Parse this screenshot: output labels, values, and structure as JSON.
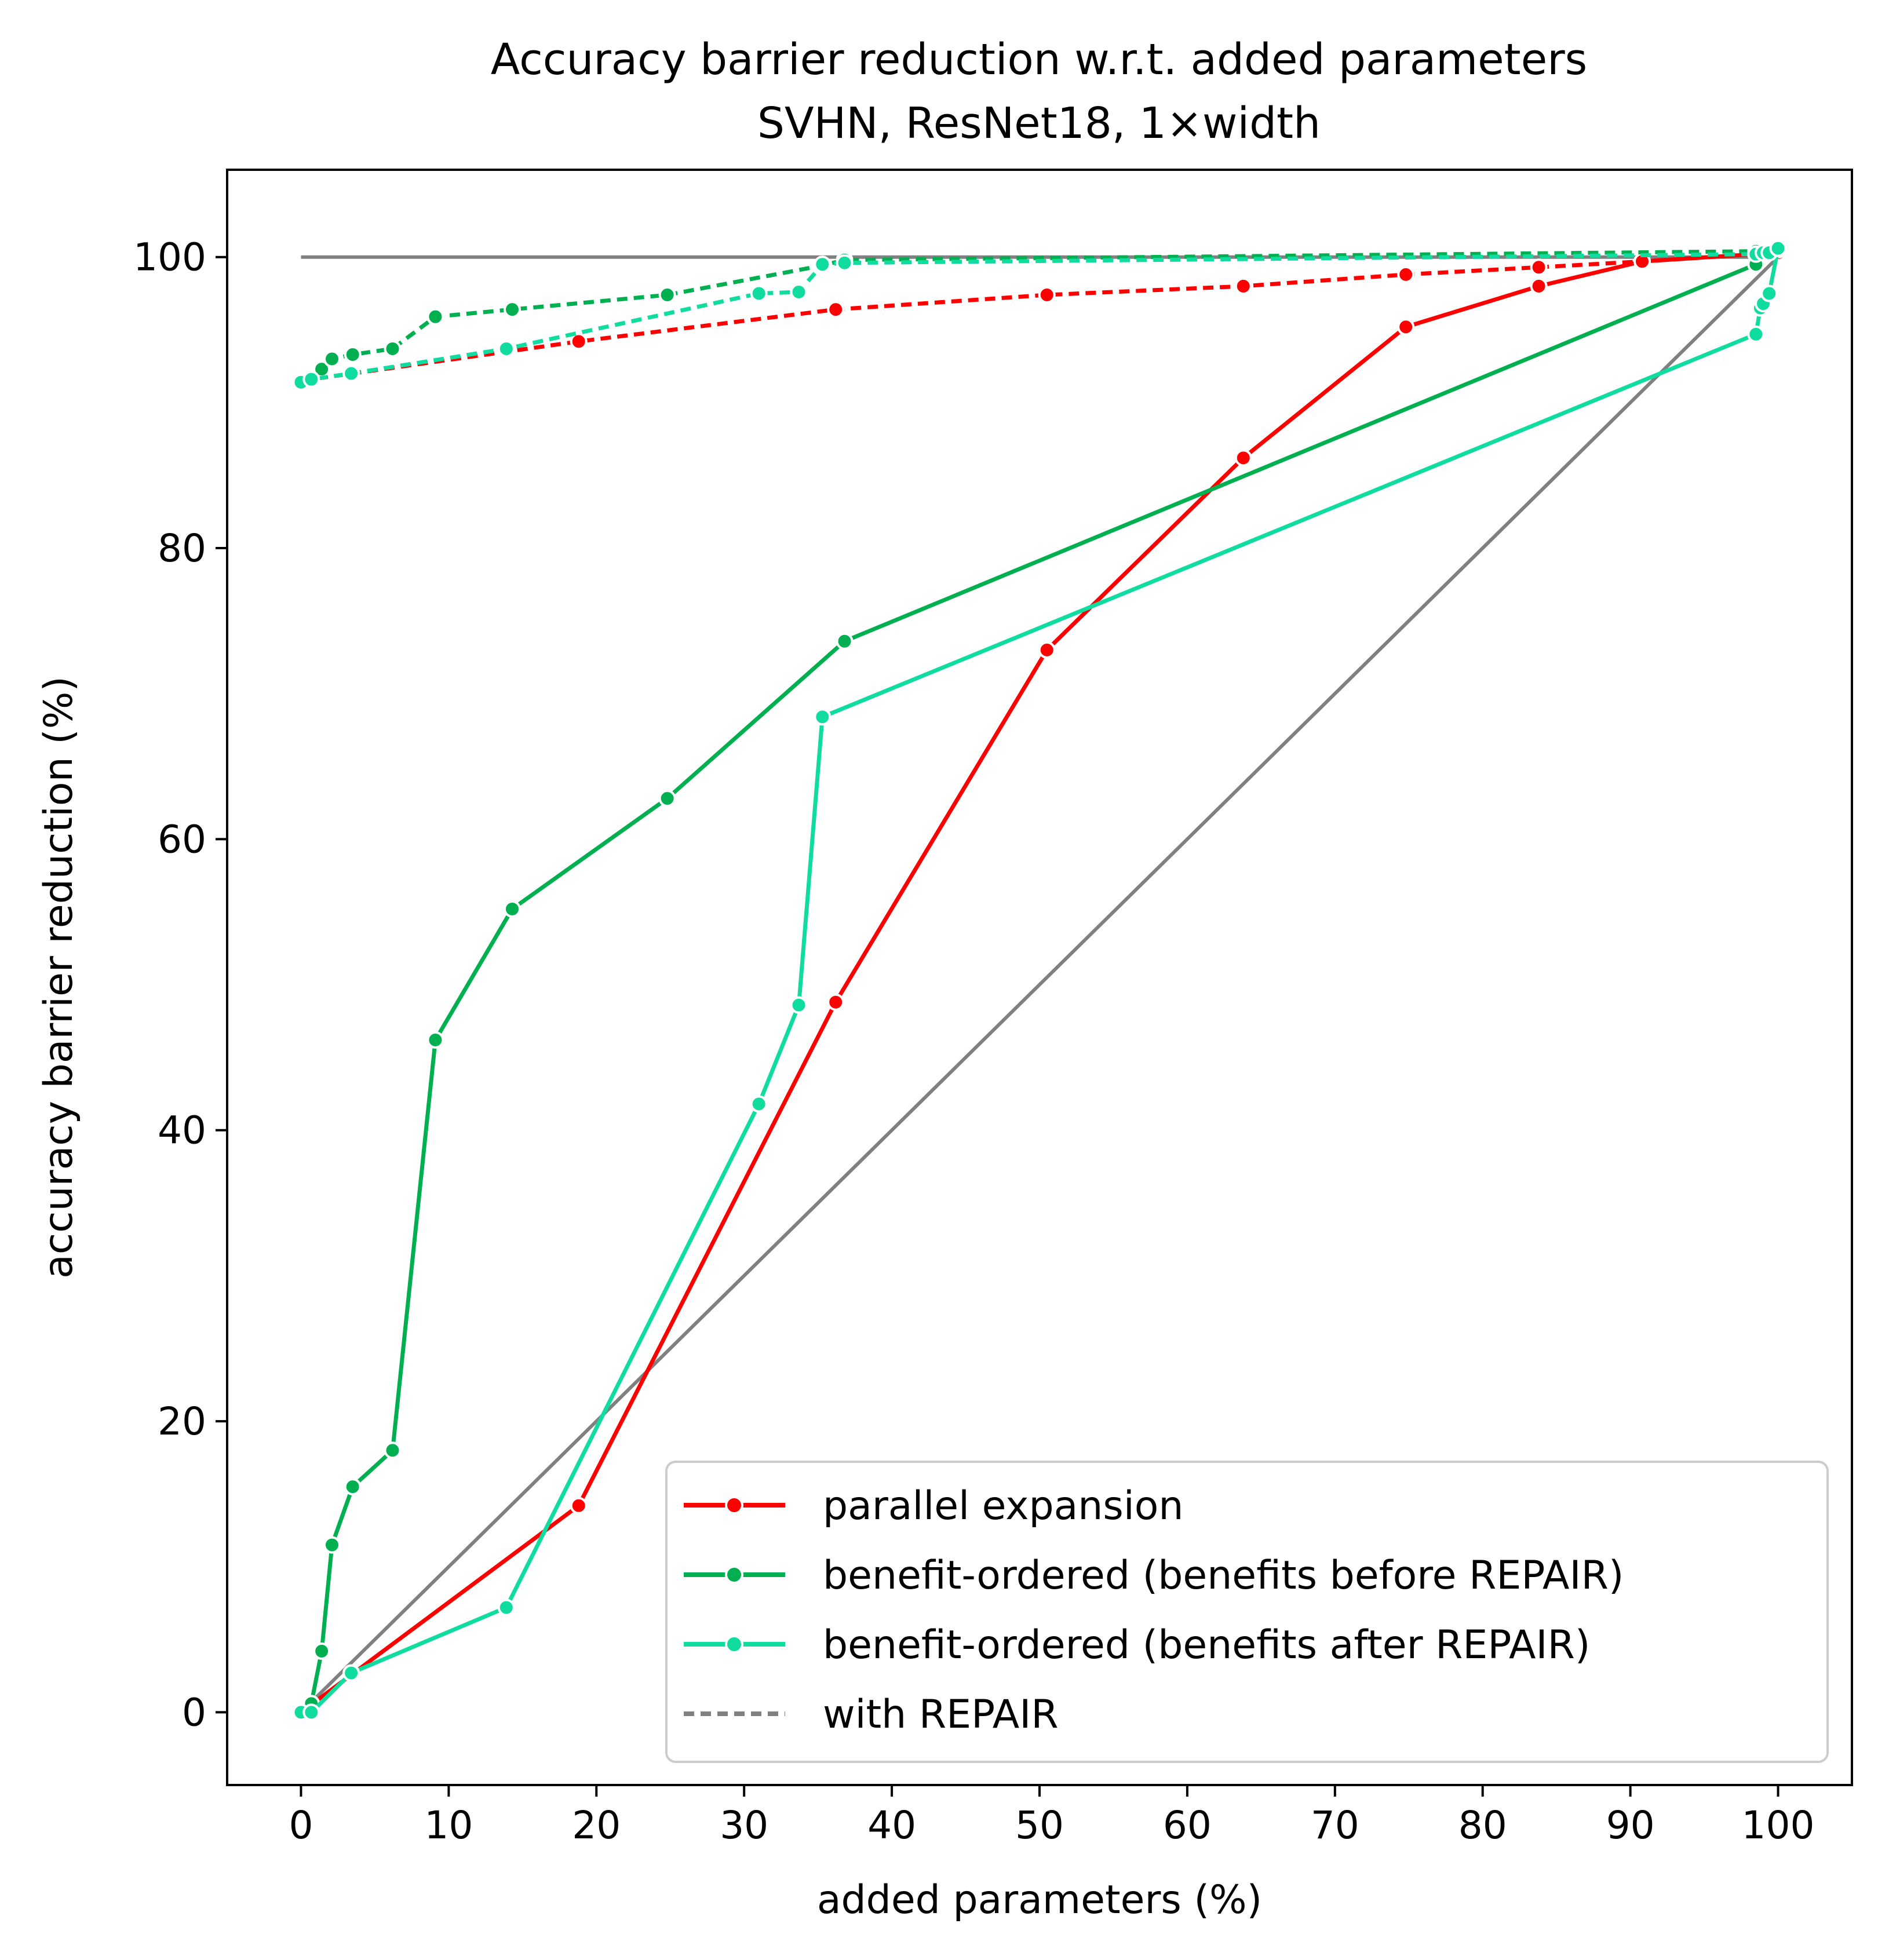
{
  "chart_data": {
    "type": "line",
    "title": "Accuracy barrier reduction w.r.t. added parameters",
    "subtitle": "SVHN, ResNet18, 1×width",
    "xlabel": "added parameters (%)",
    "ylabel": "accuracy barrier reduction (%)",
    "xlim": [
      -5,
      105
    ],
    "ylim": [
      -5,
      106
    ],
    "xticks": [
      0,
      10,
      20,
      30,
      40,
      50,
      60,
      70,
      80,
      90,
      100
    ],
    "yticks": [
      0,
      20,
      40,
      60,
      80,
      100
    ],
    "grid": false,
    "legend_position": "lower-right",
    "legend": [
      {
        "label": "parallel expansion",
        "color": "#ff0000",
        "style": "solid-marker"
      },
      {
        "label": "benefit-ordered (benefits before REPAIR)",
        "color": "#00b050",
        "style": "solid-marker"
      },
      {
        "label": "benefit-ordered (benefits after REPAIR)",
        "color": "#10dca0",
        "style": "solid-marker"
      },
      {
        "label": "with REPAIR",
        "color": "#808080",
        "style": "dashed"
      }
    ],
    "reference_lines": [
      {
        "points": [
          [
            0,
            100
          ],
          [
            100,
            100
          ]
        ],
        "color": "#808080"
      },
      {
        "points": [
          [
            0,
            0
          ],
          [
            100,
            100
          ]
        ],
        "color": "#808080"
      }
    ],
    "series": [
      {
        "name": "parallel expansion",
        "color": "#ff0000",
        "dashed": false,
        "points": [
          [
            0,
            0
          ],
          [
            18.8,
            14.2
          ],
          [
            36.2,
            48.8
          ],
          [
            50.5,
            73.0
          ],
          [
            63.8,
            86.2
          ],
          [
            74.8,
            95.2
          ],
          [
            83.8,
            98.0
          ],
          [
            90.8,
            99.7
          ],
          [
            98.5,
            100.2
          ],
          [
            100,
            100.3
          ]
        ]
      },
      {
        "name": "parallel expansion with REPAIR",
        "color": "#ff0000",
        "dashed": true,
        "points": [
          [
            0,
            91.5
          ],
          [
            18.8,
            94.2
          ],
          [
            36.2,
            96.4
          ],
          [
            50.5,
            97.4
          ],
          [
            63.8,
            98.0
          ],
          [
            74.8,
            98.8
          ],
          [
            83.8,
            99.3
          ],
          [
            90.8,
            99.7
          ],
          [
            98.5,
            100.2
          ],
          [
            100,
            100.5
          ]
        ]
      },
      {
        "name": "benefit-ordered (benefits before REPAIR)",
        "color": "#00b050",
        "dashed": false,
        "points": [
          [
            0,
            0
          ],
          [
            0.7,
            0.6
          ],
          [
            1.4,
            4.2
          ],
          [
            2.1,
            11.5
          ],
          [
            3.5,
            15.5
          ],
          [
            6.2,
            18.0
          ],
          [
            9.1,
            46.2
          ],
          [
            14.3,
            55.2
          ],
          [
            24.8,
            62.8
          ],
          [
            36.8,
            73.6
          ],
          [
            98.5,
            99.5
          ],
          [
            100,
            100.6
          ]
        ]
      },
      {
        "name": "benefit-ordered (benefits before REPAIR) with REPAIR",
        "color": "#00b050",
        "dashed": true,
        "points": [
          [
            0,
            91.5
          ],
          [
            0.7,
            91.7
          ],
          [
            1.4,
            92.3
          ],
          [
            2.1,
            93.0
          ],
          [
            3.5,
            93.3
          ],
          [
            6.2,
            93.7
          ],
          [
            9.1,
            95.9
          ],
          [
            14.3,
            96.4
          ],
          [
            24.8,
            97.4
          ],
          [
            35.2,
            99.4
          ],
          [
            36.8,
            99.8
          ],
          [
            98.5,
            100.4
          ],
          [
            100,
            100.6
          ]
        ]
      },
      {
        "name": "benefit-ordered (benefits after REPAIR)",
        "color": "#10dca0",
        "dashed": false,
        "points": [
          [
            0,
            0
          ],
          [
            0.7,
            0.0
          ],
          [
            3.4,
            2.7
          ],
          [
            13.9,
            7.2
          ],
          [
            31.0,
            41.8
          ],
          [
            33.7,
            48.6
          ],
          [
            35.3,
            68.4
          ],
          [
            98.5,
            94.7
          ],
          [
            98.8,
            96.5
          ],
          [
            99.0,
            96.8
          ],
          [
            99.4,
            97.5
          ],
          [
            100,
            100.6
          ]
        ]
      },
      {
        "name": "benefit-ordered (benefits after REPAIR) with REPAIR",
        "color": "#10dca0",
        "dashed": true,
        "points": [
          [
            0,
            91.4
          ],
          [
            0.7,
            91.6
          ],
          [
            3.4,
            92.0
          ],
          [
            13.9,
            93.7
          ],
          [
            31.0,
            97.5
          ],
          [
            33.7,
            97.6
          ],
          [
            35.3,
            99.5
          ],
          [
            36.8,
            99.6
          ],
          [
            98.5,
            100.2
          ],
          [
            99.0,
            100.3
          ],
          [
            99.4,
            100.3
          ],
          [
            100,
            100.6
          ]
        ]
      }
    ]
  }
}
